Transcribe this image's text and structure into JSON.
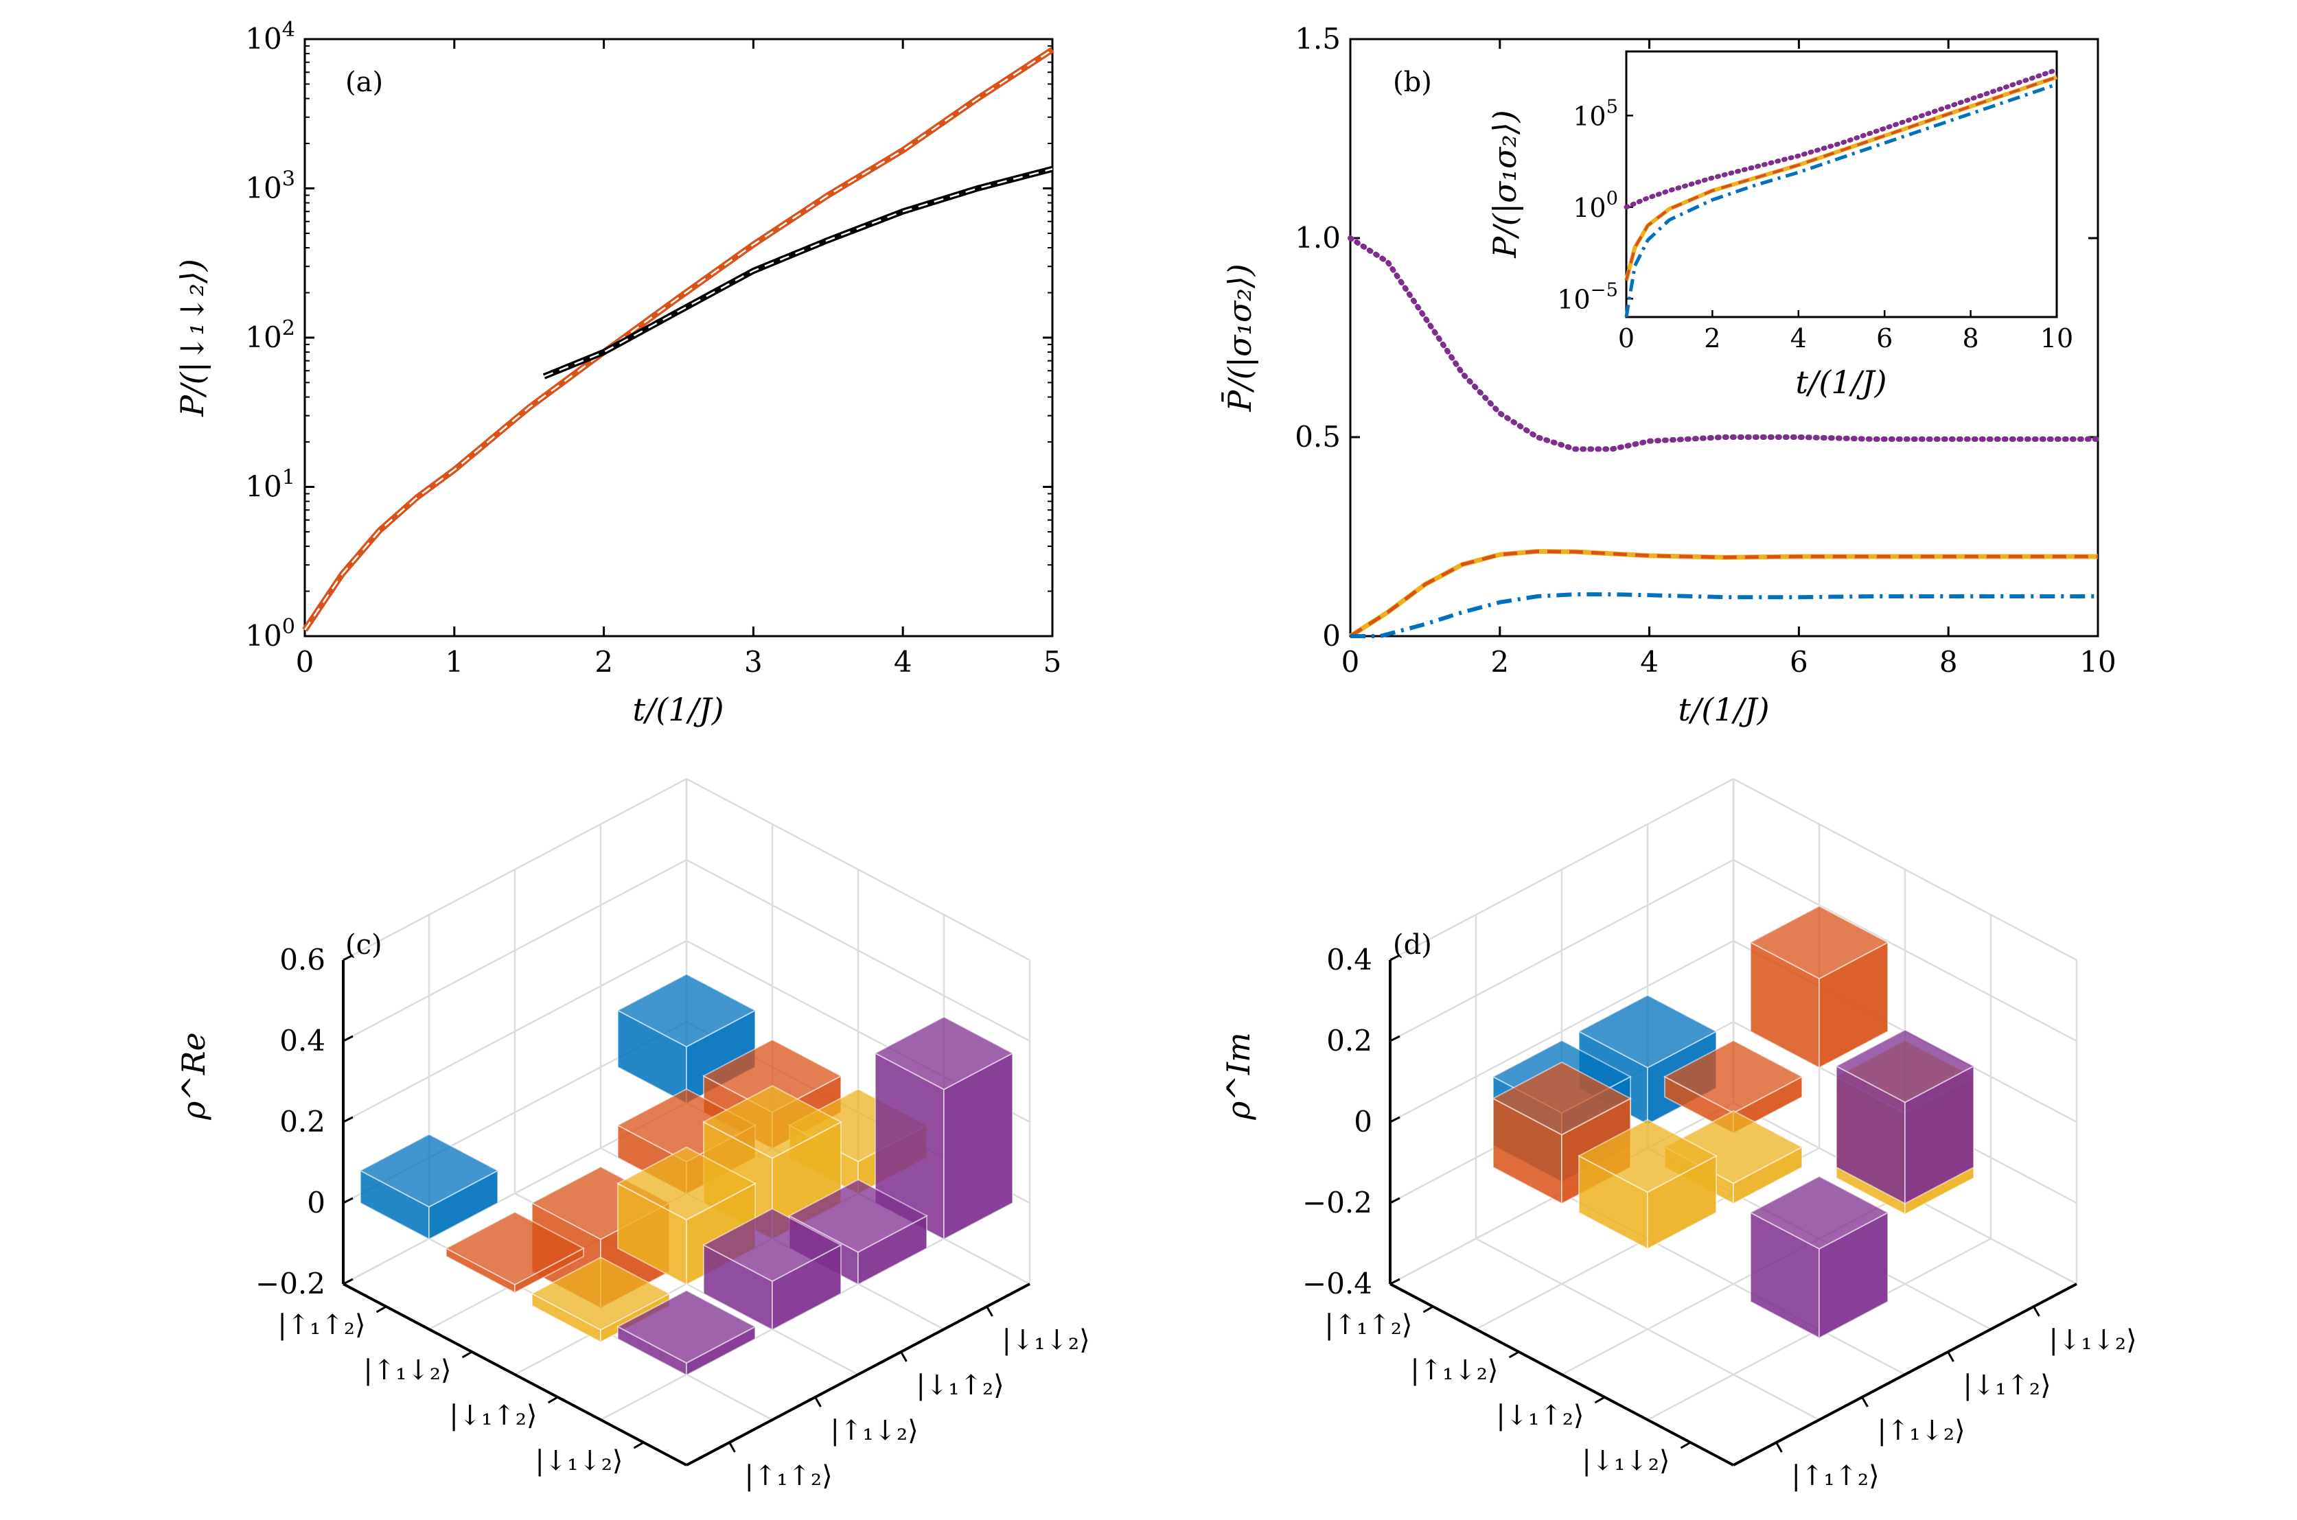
{
  "colors": {
    "orange": "#d95319",
    "black": "#000000",
    "purple": "#7e2f8e",
    "yellow": "#edb120",
    "red": "#d95319",
    "blue": "#0072bd",
    "grid": "#dddddd"
  },
  "chart_data": [
    {
      "id": "a",
      "type": "line",
      "panel_label": "(a)",
      "xlabel": "t/(1/J)",
      "ylabel": "P/(|↓₁↓₂⟩)",
      "xlim": [
        0,
        5
      ],
      "ylim_log10": [
        0,
        4
      ],
      "yscale": "log",
      "xticks": [
        "0",
        "1",
        "2",
        "3",
        "4",
        "5"
      ],
      "yticks": [
        "10^0",
        "10^1",
        "10^2",
        "10^3",
        "10^4"
      ],
      "series": [
        {
          "style": "solid-orange-with-white-dash",
          "color": "orange",
          "x": [
            0,
            0.25,
            0.5,
            0.75,
            1,
            1.5,
            2,
            2.5,
            3,
            3.5,
            4,
            4.5,
            5
          ],
          "y": [
            1.1,
            2.6,
            5.1,
            8.5,
            13,
            34,
            80,
            185,
            420,
            900,
            1800,
            4000,
            8500
          ]
        },
        {
          "style": "solid-black-with-white-dash",
          "color": "black",
          "x": [
            1.6,
            2,
            2.5,
            3,
            3.5,
            4,
            4.5,
            5
          ],
          "y": [
            55,
            80,
            150,
            280,
            450,
            700,
            1000,
            1350
          ]
        }
      ]
    },
    {
      "id": "b",
      "type": "line",
      "panel_label": "(b)",
      "xlabel": "t/(1/J)",
      "ylabel": "P̄/(|σ₁σ₂⟩)",
      "xlim": [
        0,
        10
      ],
      "ylim": [
        0,
        1.5
      ],
      "xticks": [
        "0",
        "2",
        "4",
        "6",
        "8",
        "10"
      ],
      "yticks": [
        "0",
        "0.5",
        "1.0",
        "1.5"
      ],
      "series": [
        {
          "style": "dotted",
          "color": "purple",
          "x": [
            0,
            0.5,
            1,
            1.5,
            2,
            2.5,
            3,
            3.5,
            4,
            5,
            6,
            7,
            8,
            9,
            10
          ],
          "y": [
            1.0,
            0.94,
            0.8,
            0.66,
            0.56,
            0.5,
            0.47,
            0.47,
            0.49,
            0.5,
            0.5,
            0.495,
            0.495,
            0.495,
            0.495
          ]
        },
        {
          "style": "solid-yellow-with-red-dash",
          "color": "yellow",
          "x": [
            0,
            0.5,
            1,
            1.5,
            2,
            2.5,
            3,
            3.5,
            4,
            5,
            6,
            7,
            8,
            9,
            10
          ],
          "y": [
            0,
            0.06,
            0.13,
            0.18,
            0.205,
            0.213,
            0.212,
            0.207,
            0.202,
            0.198,
            0.2,
            0.2,
            0.2,
            0.2,
            0.2
          ]
        },
        {
          "style": "dashdot",
          "color": "blue",
          "x": [
            0,
            0.4,
            1,
            1.5,
            2,
            2.5,
            3,
            3.5,
            4,
            5,
            6,
            7,
            8,
            9,
            10
          ],
          "y": [
            0,
            0,
            0.03,
            0.06,
            0.085,
            0.1,
            0.105,
            0.105,
            0.103,
            0.098,
            0.098,
            0.1,
            0.1,
            0.1,
            0.1
          ]
        }
      ],
      "inset": {
        "type": "line",
        "yscale": "log",
        "xlabel": "t/(1/J)",
        "ylabel": "P/(|σ₁σ₂⟩)",
        "xlim": [
          0,
          10
        ],
        "ylim_log10": [
          -6,
          8.5
        ],
        "xticks": [
          "0",
          "2",
          "4",
          "6",
          "8",
          "10"
        ],
        "yticks": [
          "10^−5",
          "10^0",
          "10^5"
        ],
        "ytick_values_log10": [
          -5,
          0,
          5
        ],
        "series": [
          {
            "style": "dotted",
            "color": "purple",
            "x": [
              0,
              0.5,
              1,
              2,
              3,
              4,
              5,
              6,
              7,
              8,
              9,
              10
            ],
            "y_log10": [
              0,
              0.5,
              0.9,
              1.6,
              2.2,
              2.8,
              3.5,
              4.3,
              5.1,
              5.9,
              6.7,
              7.5
            ]
          },
          {
            "style": "solid",
            "color": "yellow",
            "x": [
              0,
              0.2,
              0.5,
              1,
              2,
              3,
              4,
              5,
              6,
              7,
              8,
              9,
              10
            ],
            "y_log10": [
              -4,
              -2.2,
              -1,
              -0.1,
              0.9,
              1.6,
              2.3,
              3.1,
              3.9,
              4.7,
              5.5,
              6.3,
              7.1
            ]
          },
          {
            "style": "dashed",
            "color": "red",
            "x": [
              0,
              0.2,
              0.5,
              1,
              2,
              3,
              4,
              5,
              6,
              7,
              8,
              9,
              10
            ],
            "y_log10": [
              -4,
              -2.2,
              -1,
              -0.1,
              0.9,
              1.6,
              2.3,
              3.1,
              3.9,
              4.7,
              5.5,
              6.3,
              7.1
            ]
          },
          {
            "style": "dashdot",
            "color": "blue",
            "x": [
              0,
              0.2,
              0.5,
              1,
              2,
              3,
              4,
              5,
              6,
              7,
              8,
              9,
              10
            ],
            "y_log10": [
              -6,
              -3.2,
              -1.8,
              -0.7,
              0.4,
              1.2,
              1.9,
              2.7,
              3.5,
              4.3,
              5.1,
              5.9,
              6.7
            ]
          }
        ]
      }
    },
    {
      "id": "c",
      "type": "bar3d",
      "panel_label": "(c)",
      "zlabel": "ρ^Re",
      "zlim": [
        -0.2,
        0.6
      ],
      "zticks": [
        "0.6",
        "0.4",
        "0.2",
        "0",
        "−0.2"
      ],
      "ztick_values": [
        0.6,
        0.4,
        0.2,
        0,
        -0.2
      ],
      "row_labels": [
        "|↑₁↑₂⟩",
        "|↑₁↓₂⟩",
        "|↓₁↑₂⟩",
        "|↓₁↓₂⟩"
      ],
      "col_labels": [
        "|↑₁↑₂⟩",
        "|↑₁↓₂⟩",
        "|↓₁↑₂⟩",
        "|↓₁↓₂⟩"
      ],
      "row_colors": [
        "blue",
        "orange",
        "yellow",
        "purple"
      ],
      "values": [
        [
          0.08,
          0.0,
          0.0,
          0.14
        ],
        [
          -0.02,
          -0.17,
          0.08,
          0.09
        ],
        [
          -0.03,
          0.16,
          0.2,
          0.08
        ],
        [
          0.03,
          0.12,
          0.08,
          0.37
        ]
      ]
    },
    {
      "id": "d",
      "type": "bar3d",
      "panel_label": "(d)",
      "zlabel": "ρ^Im",
      "zlim": [
        -0.4,
        0.4
      ],
      "zticks": [
        "0.4",
        "0.2",
        "0",
        "−0.2",
        "−0.4"
      ],
      "ztick_values": [
        0.4,
        0.2,
        0,
        -0.2,
        -0.4
      ],
      "row_labels": [
        "|↑₁↑₂⟩",
        "|↑₁↓₂⟩",
        "|↓₁↑₂⟩",
        "|↓₁↓₂⟩"
      ],
      "col_labels": [
        "|↑₁↑₂⟩",
        "|↑₁↓₂⟩",
        "|↓₁↑₂⟩",
        "|↓₁↓₂⟩"
      ],
      "row_colors": [
        "blue",
        "orange",
        "yellow",
        "purple"
      ],
      "values": [
        [
          0.0,
          -0.17,
          -0.14,
          0.0
        ],
        [
          0.17,
          0.0,
          -0.05,
          0.22
        ],
        [
          0.14,
          0.05,
          0.0,
          -0.25
        ],
        [
          0.0,
          -0.22,
          0.25,
          0.0
        ]
      ]
    }
  ]
}
